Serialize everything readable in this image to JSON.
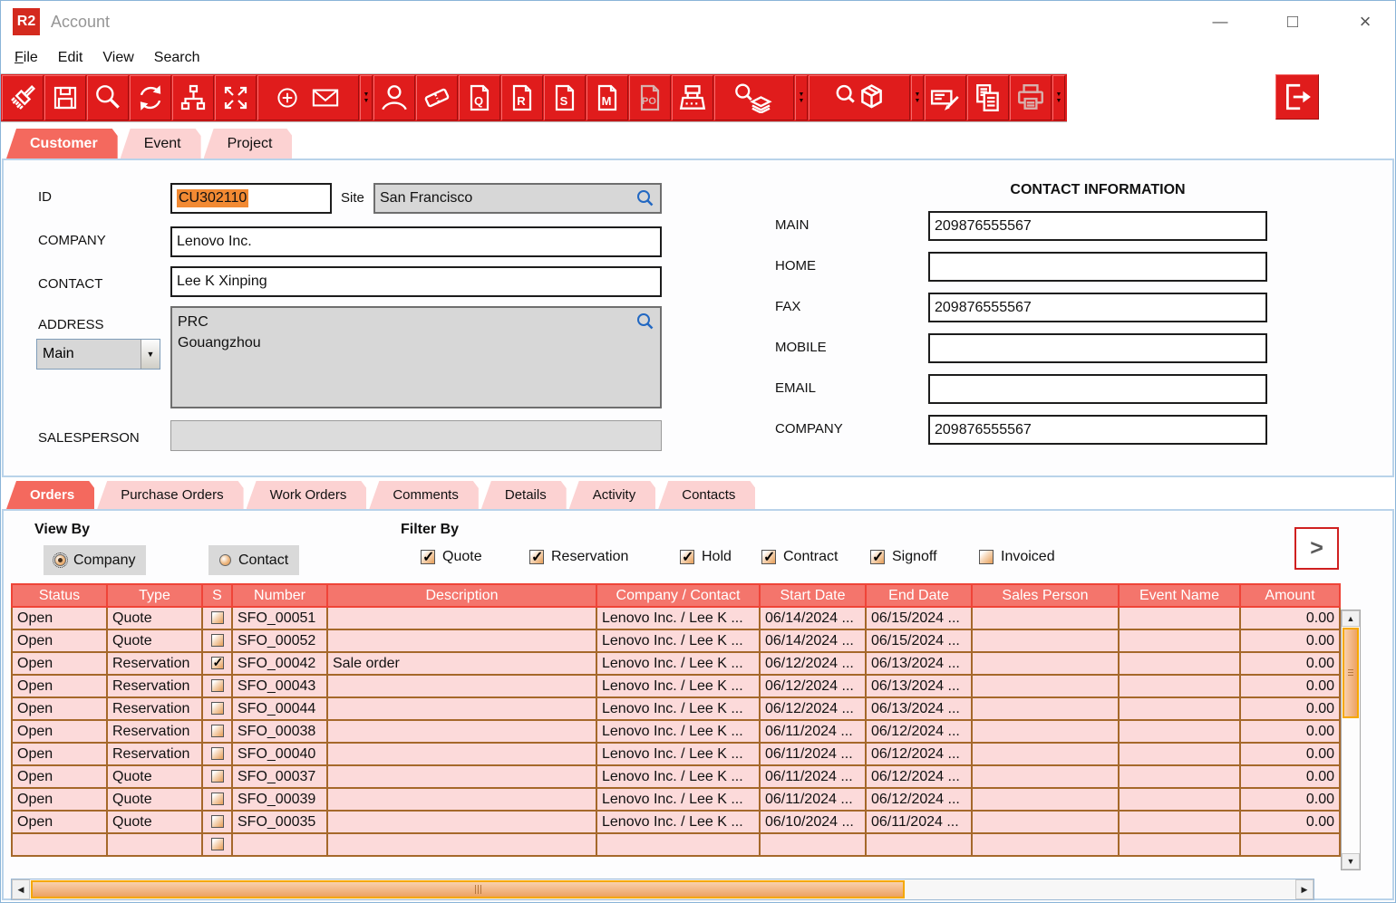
{
  "window": {
    "logo": "R2",
    "title": "Account"
  },
  "icons": {
    "minimize": "—",
    "maximize": "□",
    "close": "×",
    "scroll_up": "▲",
    "scroll_down": "▼",
    "scroll_left": "◀",
    "scroll_right": "▶",
    "next": ">",
    "dropdown_arrow": "▼",
    "overflow_top": "▼",
    "overflow_bottom": "▼"
  },
  "menu": {
    "items": [
      "File",
      "Edit",
      "View",
      "Search"
    ]
  },
  "toolbar": {
    "icons": [
      "sweep-clear",
      "save",
      "search",
      "refresh",
      "hierarchy",
      "expand",
      "add-message",
      "overflow",
      "contact-person",
      "ticket",
      "quote-document",
      "reservation-document",
      "sale-document",
      "misc-document",
      "purchase-order-document",
      "register",
      "search-stock",
      "overflow",
      "search-item",
      "overflow",
      "signature-edit",
      "copy-documents",
      "print",
      "overflow",
      "exit"
    ],
    "doc_letters": [
      "Q",
      "R",
      "S",
      "M",
      "PO"
    ]
  },
  "main_tabs": {
    "items": [
      {
        "label": "Customer",
        "active": true
      },
      {
        "label": "Event",
        "active": false
      },
      {
        "label": "Project",
        "active": false
      }
    ]
  },
  "form": {
    "id": {
      "label": "ID",
      "value": "CU302110"
    },
    "site": {
      "label": "Site",
      "value": "San Francisco"
    },
    "company": {
      "label": "COMPANY",
      "value": "Lenovo Inc."
    },
    "contact": {
      "label": "CONTACT",
      "value": "Lee K Xinping"
    },
    "address": {
      "label": "ADDRESS",
      "type_value": "Main",
      "value": "PRC\nGouangzhou"
    },
    "salesperson": {
      "label": "SALESPERSON",
      "value": ""
    }
  },
  "contact_info": {
    "heading": "CONTACT INFORMATION",
    "fields": [
      {
        "label": "MAIN",
        "value": "209876555567"
      },
      {
        "label": "HOME",
        "value": ""
      },
      {
        "label": "FAX",
        "value": "209876555567"
      },
      {
        "label": "MOBILE",
        "value": ""
      },
      {
        "label": "EMAIL",
        "value": ""
      },
      {
        "label": "COMPANY",
        "value": "209876555567"
      }
    ]
  },
  "sub_tabs": {
    "items": [
      {
        "label": "Orders",
        "active": true
      },
      {
        "label": "Purchase Orders",
        "active": false
      },
      {
        "label": "Work Orders",
        "active": false
      },
      {
        "label": "Comments",
        "active": false
      },
      {
        "label": "Details",
        "active": false
      },
      {
        "label": "Activity",
        "active": false
      },
      {
        "label": "Contacts",
        "active": false
      }
    ]
  },
  "view_by": {
    "heading": "View By",
    "options": [
      {
        "label": "Company",
        "selected": true
      },
      {
        "label": "Contact",
        "selected": false
      }
    ]
  },
  "filter_by": {
    "heading": "Filter By",
    "options": [
      {
        "label": "Quote",
        "checked": true
      },
      {
        "label": "Reservation",
        "checked": true
      },
      {
        "label": "Hold",
        "checked": true
      },
      {
        "label": "Contract",
        "checked": true
      },
      {
        "label": "Signoff",
        "checked": true
      },
      {
        "label": "Invoiced",
        "checked": false
      }
    ]
  },
  "orders_table": {
    "columns": [
      "Status",
      "Type",
      "S",
      "Number",
      "Description",
      "Company / Contact",
      "Start Date",
      "End Date",
      "Sales Person",
      "Event Name",
      "Amount"
    ],
    "rows": [
      {
        "status": "Open",
        "type": "Quote",
        "selected": false,
        "number": "SFO_00051",
        "description": "",
        "company_contact": "Lenovo Inc. / Lee K ...",
        "start_date": "06/14/2024 ...",
        "end_date": "06/15/2024 ...",
        "sales_person": "",
        "event_name": "",
        "amount": "0.00"
      },
      {
        "status": "Open",
        "type": "Quote",
        "selected": false,
        "number": "SFO_00052",
        "description": "",
        "company_contact": "Lenovo Inc. / Lee K ...",
        "start_date": "06/14/2024 ...",
        "end_date": "06/15/2024 ...",
        "sales_person": "",
        "event_name": "",
        "amount": "0.00"
      },
      {
        "status": "Open",
        "type": "Reservation",
        "selected": true,
        "number": "SFO_00042",
        "description": "Sale order",
        "company_contact": "Lenovo Inc. / Lee K ...",
        "start_date": "06/12/2024 ...",
        "end_date": "06/13/2024 ...",
        "sales_person": "",
        "event_name": "",
        "amount": "0.00"
      },
      {
        "status": "Open",
        "type": "Reservation",
        "selected": false,
        "number": "SFO_00043",
        "description": "",
        "company_contact": "Lenovo Inc. / Lee K ...",
        "start_date": "06/12/2024 ...",
        "end_date": "06/13/2024 ...",
        "sales_person": "",
        "event_name": "",
        "amount": "0.00"
      },
      {
        "status": "Open",
        "type": "Reservation",
        "selected": false,
        "number": "SFO_00044",
        "description": "",
        "company_contact": "Lenovo Inc. / Lee K ...",
        "start_date": "06/12/2024 ...",
        "end_date": "06/13/2024 ...",
        "sales_person": "",
        "event_name": "",
        "amount": "0.00"
      },
      {
        "status": "Open",
        "type": "Reservation",
        "selected": false,
        "number": "SFO_00038",
        "description": "",
        "company_contact": "Lenovo Inc. / Lee K ...",
        "start_date": "06/11/2024 ...",
        "end_date": "06/12/2024 ...",
        "sales_person": "",
        "event_name": "",
        "amount": "0.00"
      },
      {
        "status": "Open",
        "type": "Reservation",
        "selected": false,
        "number": "SFO_00040",
        "description": "",
        "company_contact": "Lenovo Inc. / Lee K ...",
        "start_date": "06/11/2024 ...",
        "end_date": "06/12/2024 ...",
        "sales_person": "",
        "event_name": "",
        "amount": "0.00"
      },
      {
        "status": "Open",
        "type": "Quote",
        "selected": false,
        "number": "SFO_00037",
        "description": "",
        "company_contact": "Lenovo Inc. / Lee K ...",
        "start_date": "06/11/2024 ...",
        "end_date": "06/12/2024 ...",
        "sales_person": "",
        "event_name": "",
        "amount": "0.00"
      },
      {
        "status": "Open",
        "type": "Quote",
        "selected": false,
        "number": "SFO_00039",
        "description": "",
        "company_contact": "Lenovo Inc. / Lee K ...",
        "start_date": "06/11/2024 ...",
        "end_date": "06/12/2024 ...",
        "sales_person": "",
        "event_name": "",
        "amount": "0.00"
      },
      {
        "status": "Open",
        "type": "Quote",
        "selected": false,
        "number": "SFO_00035",
        "description": "",
        "company_contact": "Lenovo Inc. / Lee K ...",
        "start_date": "06/10/2024 ...",
        "end_date": "06/11/2024 ...",
        "sales_person": "",
        "event_name": "",
        "amount": "0.00"
      },
      {
        "status": "",
        "type": "",
        "selected": false,
        "number": "",
        "description": "",
        "company_contact": "",
        "start_date": "",
        "end_date": "",
        "sales_person": "",
        "event_name": "",
        "amount": ""
      }
    ]
  }
}
